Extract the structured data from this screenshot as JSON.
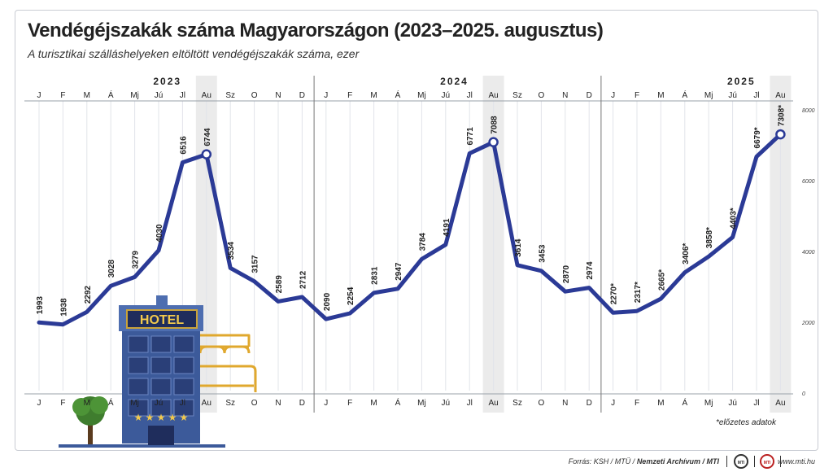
{
  "title": "Vendégéjszakák száma Magyarországon (2023–2025. augusztus)",
  "subtitle": "A turisztikai szálláshelyeken eltöltött vendégéjszakák száma, ezer",
  "footnote": "*előzetes adatok",
  "source": {
    "prefix": "Forrás: KSH / MTÜ / ",
    "bold": "Nemzeti Archívum / MTI"
  },
  "logos": {
    "mti": "MTI",
    "mtu": "MTI"
  },
  "website": "www.mti.hu",
  "hotel_sign": "HOTEL",
  "colors": {
    "line": "#2b3a96",
    "grid": "#e2e4ea",
    "highlight": "#ebebeb",
    "frame": "#c9ccd3",
    "hotel": "#3c5a9a",
    "bed": "#e0a82e"
  },
  "chart_data": {
    "type": "line",
    "title": "Vendégéjszakák száma Magyarországon (2023–2025. augusztus)",
    "ylabel": "",
    "ylim": [
      0,
      8000
    ],
    "y_ticks": [
      "0",
      "2000",
      "4000",
      "6000",
      "8000"
    ],
    "year_labels": [
      "2023",
      "2024",
      "2025"
    ],
    "x": [
      "J",
      "F",
      "M",
      "Á",
      "Mj",
      "Jú",
      "Jl",
      "Au",
      "Sz",
      "O",
      "N",
      "D",
      "J",
      "F",
      "M",
      "Á",
      "Mj",
      "Jú",
      "Jl",
      "Au",
      "Sz",
      "O",
      "N",
      "D",
      "J",
      "F",
      "M",
      "Á",
      "Mj",
      "Jú",
      "Jl",
      "Au"
    ],
    "series": [
      {
        "values": [
          1993,
          1938,
          2292,
          3028,
          3279,
          4030,
          6516,
          6744,
          3534,
          3157,
          2589,
          2712,
          2090,
          2254,
          2831,
          2947,
          3784,
          4191,
          6771,
          7088,
          3614,
          3453,
          2870,
          2974,
          2270,
          2317,
          2665,
          3406,
          3858,
          4403,
          6679,
          7308
        ],
        "labels": [
          "1993",
          "1938",
          "2292",
          "3028",
          "3279",
          "4030",
          "6516",
          "6744",
          "3534",
          "3157",
          "2589",
          "2712",
          "2090",
          "2254",
          "2831",
          "2947",
          "3784",
          "4191",
          "6771",
          "7088",
          "3614",
          "3453",
          "2870",
          "2974",
          "2270*",
          "2317*",
          "2665*",
          "3406*",
          "3858*",
          "4403*",
          "6679*",
          "7308*"
        ]
      }
    ],
    "highlight_months": [
      "Au"
    ],
    "marked_points": [
      7,
      19,
      31
    ],
    "grid": true
  }
}
